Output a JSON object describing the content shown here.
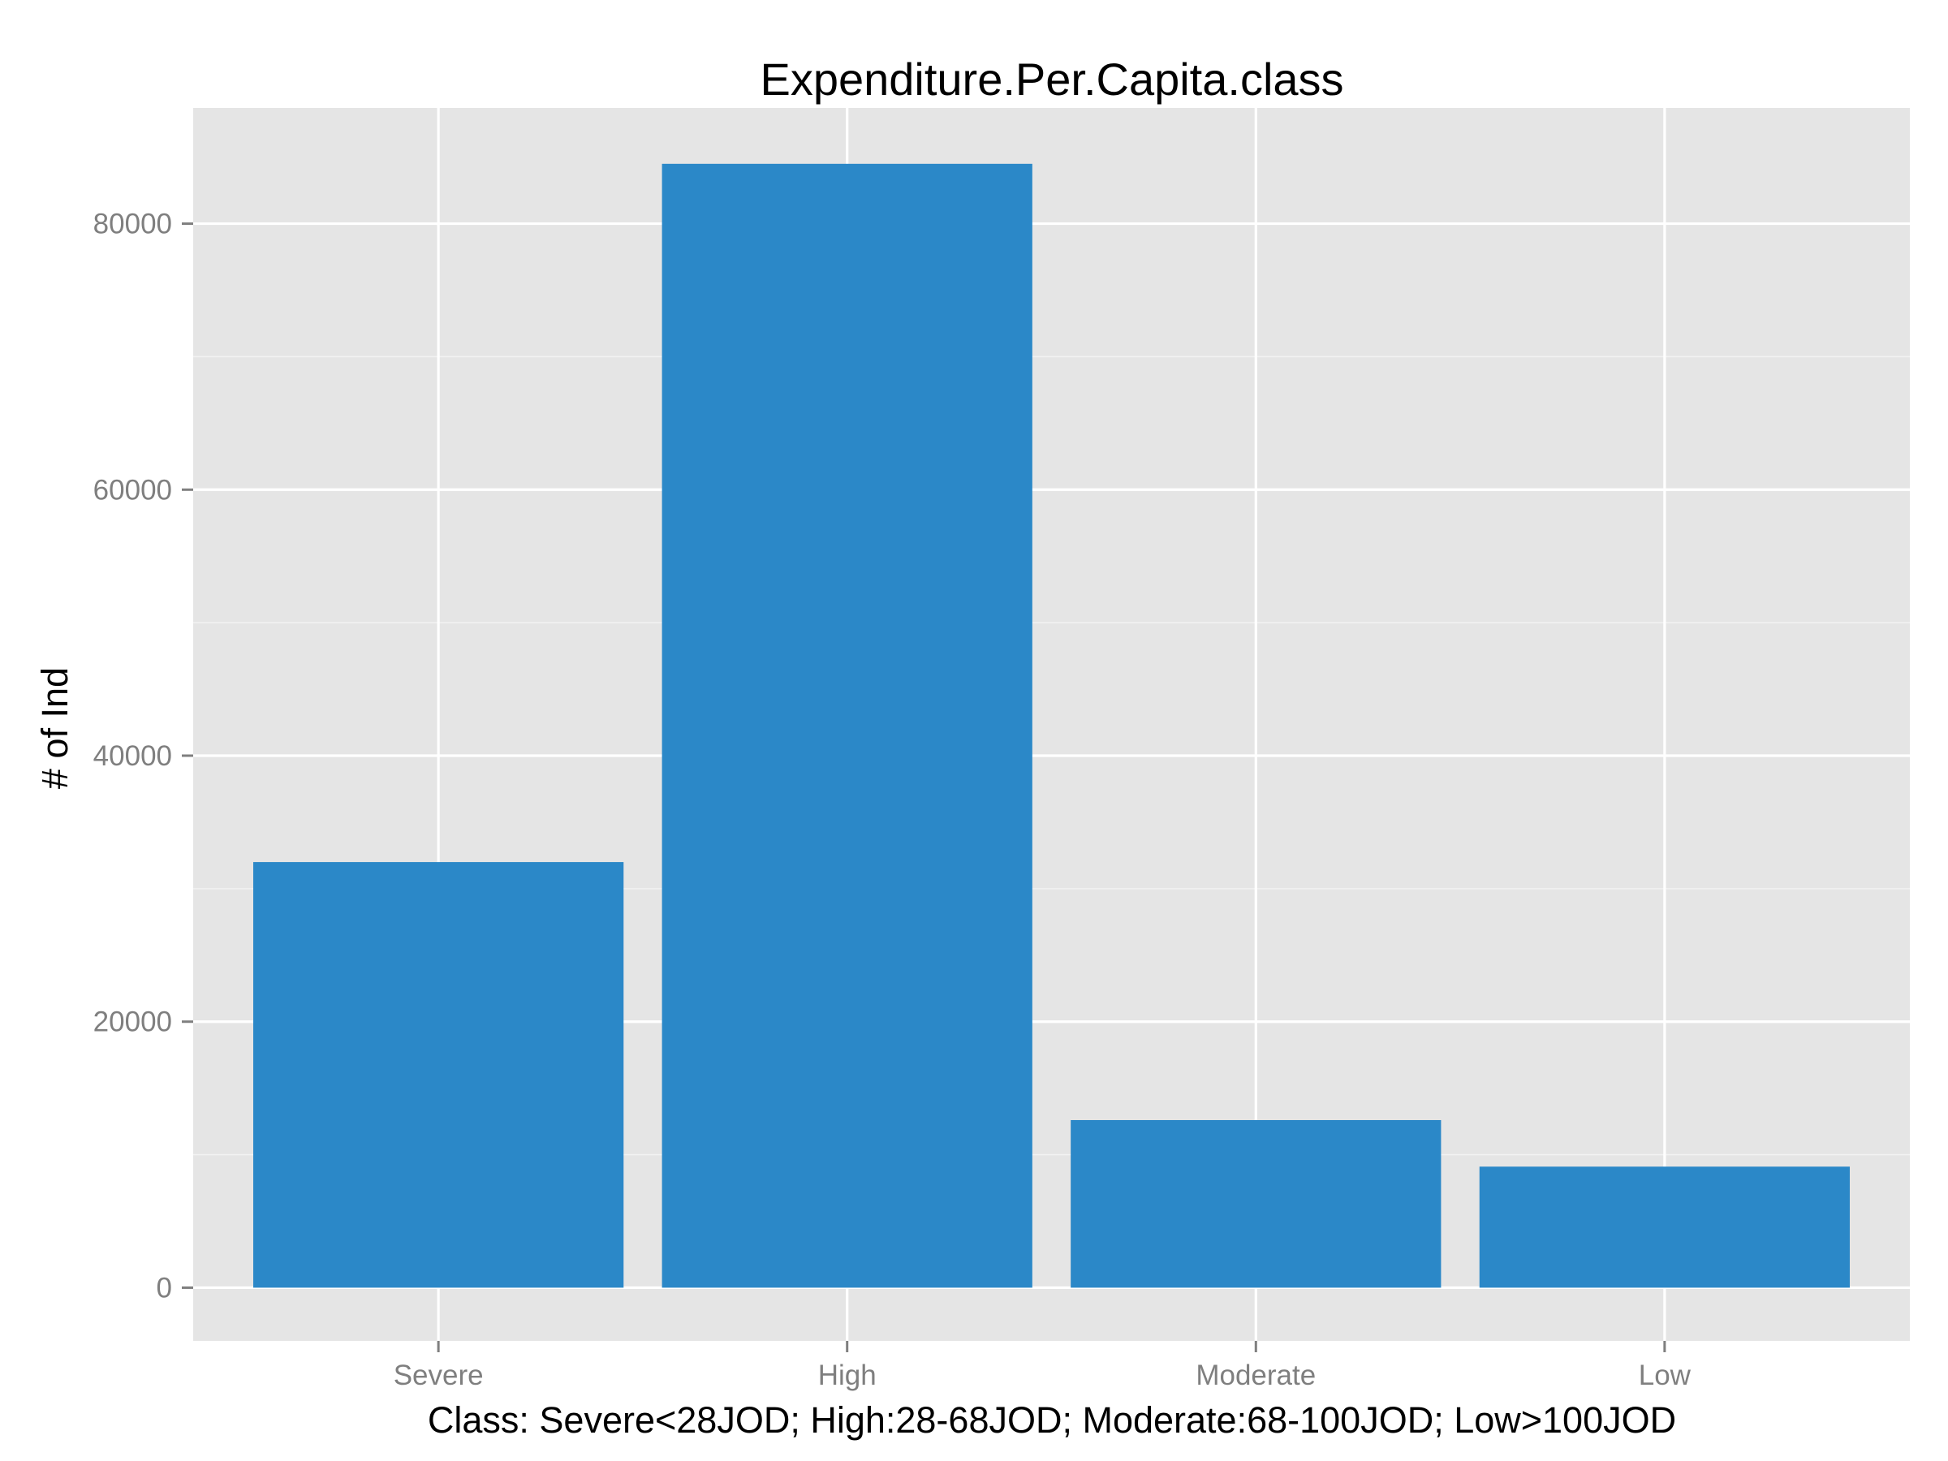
{
  "chart_data": {
    "type": "bar",
    "title": "Expenditure.Per.Capita.class",
    "xlabel": "Class: Severe<28JOD; High:28-68JOD; Moderate:68-100JOD; Low>100JOD",
    "ylabel": "# of Ind",
    "categories": [
      "Severe",
      "High",
      "Moderate",
      "Low"
    ],
    "values": [
      32000,
      84500,
      12600,
      9100
    ],
    "ylim": [
      -4000,
      88700
    ],
    "yticks": [
      0,
      20000,
      40000,
      60000,
      80000
    ],
    "ytick_labels": [
      "0",
      "20000",
      "40000",
      "60000",
      "80000"
    ],
    "grid": true,
    "legend": "none",
    "colors": {
      "bar": "#2b88c8",
      "panel": "#e5e5e5",
      "grid_major": "#ffffff",
      "grid_minor": "#f2f2f2",
      "tick_text": "#7f7f7f",
      "title_text": "#000000"
    }
  }
}
